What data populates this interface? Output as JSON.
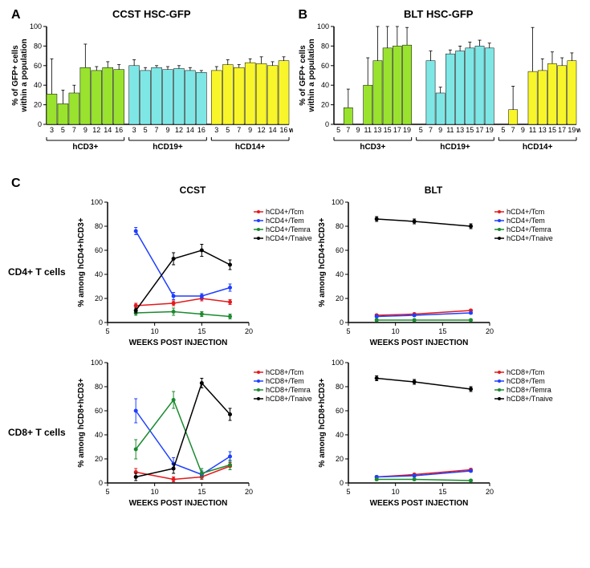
{
  "panelA": {
    "title": "CCST HSC-GFP",
    "ylabel": "% of GFP+ cells\nwithin a population",
    "ylim": [
      0,
      100
    ],
    "ytick": 20,
    "xticks": [
      "3",
      "5",
      "7",
      "9",
      "12",
      "14",
      "16"
    ],
    "groups": [
      {
        "label": "hCD3+",
        "color": "#99e32f",
        "vals": [
          31,
          21,
          32,
          58,
          55,
          58,
          56
        ],
        "err": [
          36,
          14,
          8,
          24,
          4,
          6,
          5
        ]
      },
      {
        "label": "hCD19+",
        "color": "#7ee7e5",
        "vals": [
          60,
          55,
          58,
          56,
          57,
          55,
          53
        ],
        "err": [
          6,
          3,
          2,
          3,
          3,
          3,
          2
        ]
      },
      {
        "label": "hCD14+",
        "color": "#f8f62a",
        "vals": [
          55,
          61,
          58,
          63,
          62,
          60,
          65
        ],
        "err": [
          4,
          5,
          3,
          4,
          7,
          4,
          4
        ]
      }
    ],
    "xunit": "wph"
  },
  "panelB": {
    "title": "BLT HSC-GFP",
    "ylabel": "% of GFP+ cells\nwithin a population",
    "ylim": [
      0,
      100
    ],
    "ytick": 20,
    "xticks": [
      "5",
      "7",
      "9",
      "11",
      "13",
      "15",
      "17",
      "19"
    ],
    "groups": [
      {
        "label": "hCD3+",
        "color": "#99e32f",
        "vals": [
          0,
          17,
          0,
          40,
          65,
          78,
          80,
          81
        ],
        "err": [
          0,
          19,
          0,
          28,
          35,
          22,
          20,
          18
        ]
      },
      {
        "label": "hCD19+",
        "color": "#7ee7e5",
        "vals": [
          0,
          65,
          32,
          72,
          75,
          78,
          80,
          78
        ],
        "err": [
          0,
          10,
          6,
          4,
          5,
          6,
          6,
          5
        ]
      },
      {
        "label": "hCD14+",
        "color": "#f8f62a",
        "vals": [
          0,
          15,
          0,
          54,
          55,
          62,
          60,
          65
        ],
        "err": [
          0,
          24,
          0,
          45,
          12,
          12,
          8,
          8
        ]
      }
    ],
    "xunit": "wph"
  },
  "panelC": {
    "colTitles": [
      "CCST",
      "BLT"
    ],
    "rowTitles": [
      "CD4+ T cells",
      "CD8+ T cells"
    ],
    "xlabel": "WEEKS POST INJECTION",
    "xlim": [
      5,
      20
    ],
    "xtick": 5,
    "ylim": [
      0,
      100
    ],
    "ytick": 20,
    "charts": [
      {
        "ylabel": "% among hCD4+hCD3+",
        "legend": [
          {
            "label": "hCD4+/Tcm",
            "color": "#e31a1c"
          },
          {
            "label": "hCD4+/Tem",
            "color": "#1f3fff"
          },
          {
            "label": "hCD4+/Temra",
            "color": "#1b8a2f"
          },
          {
            "label": "hCD4+/Tnaive",
            "color": "#000000"
          }
        ],
        "series": [
          {
            "color": "#e31a1c",
            "pts": [
              [
                8,
                14,
                2
              ],
              [
                12,
                16,
                2
              ],
              [
                15,
                20,
                2
              ],
              [
                18,
                17,
                2
              ]
            ]
          },
          {
            "color": "#1f3fff",
            "pts": [
              [
                8,
                76,
                3
              ],
              [
                12,
                22,
                3
              ],
              [
                15,
                22,
                2
              ],
              [
                18,
                29,
                3
              ]
            ]
          },
          {
            "color": "#1b8a2f",
            "pts": [
              [
                8,
                8,
                2
              ],
              [
                12,
                9,
                3
              ],
              [
                15,
                7,
                2
              ],
              [
                18,
                5,
                2
              ]
            ]
          },
          {
            "color": "#000000",
            "pts": [
              [
                8,
                10,
                2
              ],
              [
                12,
                53,
                5
              ],
              [
                15,
                60,
                5
              ],
              [
                18,
                48,
                4
              ]
            ]
          }
        ]
      },
      {
        "ylabel": "% among hCD4+hCD3+",
        "legend": [
          {
            "label": "hCD4+/Tcm",
            "color": "#e31a1c"
          },
          {
            "label": "hCD4+/Tem",
            "color": "#1f3fff"
          },
          {
            "label": "hCD4+/Temra",
            "color": "#1b8a2f"
          },
          {
            "label": "hCD4+/Tnaive",
            "color": "#000000"
          }
        ],
        "series": [
          {
            "color": "#000000",
            "pts": [
              [
                8,
                86,
                2
              ],
              [
                12,
                84,
                2
              ],
              [
                18,
                80,
                2
              ]
            ]
          },
          {
            "color": "#e31a1c",
            "pts": [
              [
                8,
                6,
                1
              ],
              [
                12,
                7,
                1
              ],
              [
                18,
                10,
                1
              ]
            ]
          },
          {
            "color": "#1f3fff",
            "pts": [
              [
                8,
                5,
                1
              ],
              [
                12,
                6,
                1
              ],
              [
                18,
                8,
                1
              ]
            ]
          },
          {
            "color": "#1b8a2f",
            "pts": [
              [
                8,
                2,
                1
              ],
              [
                12,
                2,
                1
              ],
              [
                18,
                2,
                1
              ]
            ]
          }
        ]
      },
      {
        "ylabel": "% among hCD8+hCD3+",
        "legend": [
          {
            "label": "hCD8+/Tcm",
            "color": "#e31a1c"
          },
          {
            "label": "hCD8+/Tem",
            "color": "#1f3fff"
          },
          {
            "label": "hCD8+/Temra",
            "color": "#1b8a2f"
          },
          {
            "label": "hCD8+/Tnaive",
            "color": "#000000"
          }
        ],
        "series": [
          {
            "color": "#e31a1c",
            "pts": [
              [
                8,
                9,
                3
              ],
              [
                12,
                3,
                2
              ],
              [
                15,
                5,
                2
              ],
              [
                18,
                14,
                3
              ]
            ]
          },
          {
            "color": "#1f3fff",
            "pts": [
              [
                8,
                60,
                10
              ],
              [
                12,
                16,
                5
              ],
              [
                15,
                7,
                3
              ],
              [
                18,
                22,
                4
              ]
            ]
          },
          {
            "color": "#1b8a2f",
            "pts": [
              [
                8,
                28,
                8
              ],
              [
                12,
                69,
                7
              ],
              [
                15,
                8,
                4
              ],
              [
                18,
                15,
                4
              ]
            ]
          },
          {
            "color": "#000000",
            "pts": [
              [
                8,
                5,
                3
              ],
              [
                12,
                12,
                4
              ],
              [
                15,
                83,
                4
              ],
              [
                18,
                57,
                5
              ]
            ]
          }
        ]
      },
      {
        "ylabel": "% among hCD8+hCD3+",
        "legend": [
          {
            "label": "hCD8+/Tcm",
            "color": "#e31a1c"
          },
          {
            "label": "hCD8+/Tem",
            "color": "#1f3fff"
          },
          {
            "label": "hCD8+/Temra",
            "color": "#1b8a2f"
          },
          {
            "label": "hCD8+/Tnaive",
            "color": "#000000"
          }
        ],
        "series": [
          {
            "color": "#000000",
            "pts": [
              [
                8,
                87,
                2
              ],
              [
                12,
                84,
                2
              ],
              [
                18,
                78,
                2
              ]
            ]
          },
          {
            "color": "#e31a1c",
            "pts": [
              [
                8,
                5,
                1
              ],
              [
                12,
                7,
                1
              ],
              [
                18,
                11,
                1
              ]
            ]
          },
          {
            "color": "#1f3fff",
            "pts": [
              [
                8,
                5,
                1
              ],
              [
                12,
                6,
                1
              ],
              [
                18,
                10,
                1
              ]
            ]
          },
          {
            "color": "#1b8a2f",
            "pts": [
              [
                8,
                3,
                1
              ],
              [
                12,
                3,
                1
              ],
              [
                18,
                2,
                1
              ]
            ]
          }
        ]
      }
    ]
  }
}
